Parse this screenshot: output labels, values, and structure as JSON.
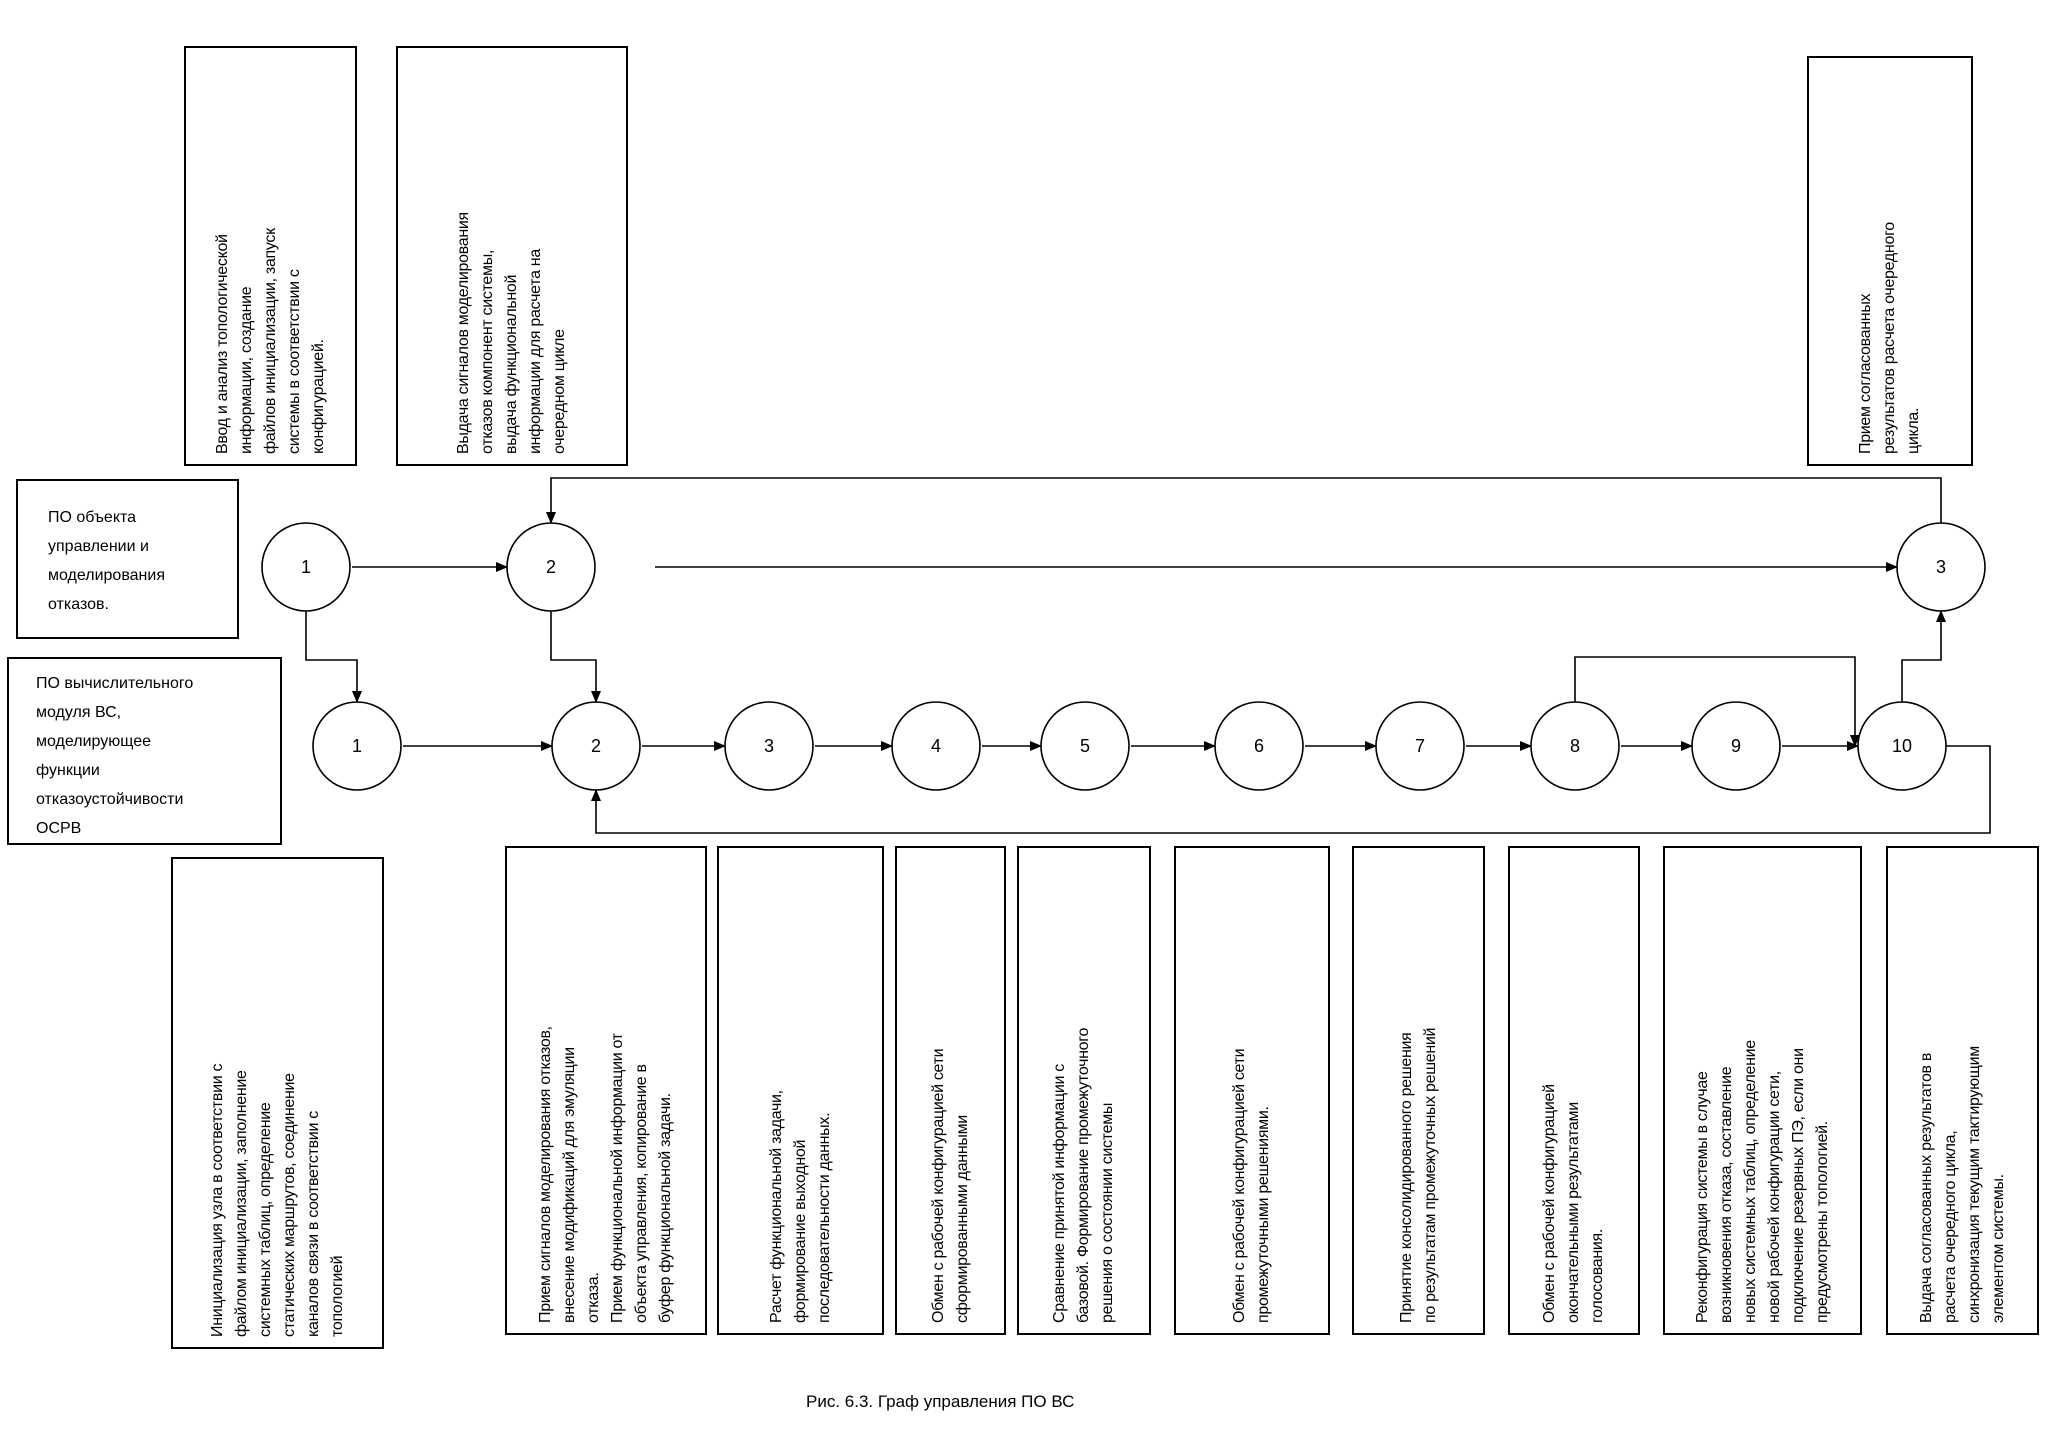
{
  "caption": "Рис. 6.3. Граф управления ПО ВС",
  "left_boxes": [
    {
      "lines": [
        "ПО объекта",
        "управлении и",
        "моделирования",
        "отказов."
      ]
    },
    {
      "lines": [
        "ПО вычислительного",
        "модуля ВС,",
        "моделирующее",
        "функции",
        "отказоустойчивости",
        "ОСРВ"
      ]
    }
  ],
  "top_nodes": [
    "1",
    "2",
    "3"
  ],
  "bottom_nodes": [
    "1",
    "2",
    "3",
    "4",
    "5",
    "6",
    "7",
    "8",
    "9",
    "10"
  ],
  "top_boxes": [
    {
      "lines": [
        "Ввод и анализ топологической",
        "информации, создание",
        "файлов инициализации, запуск",
        "системы в соответствии с",
        "конфигурацией."
      ]
    },
    {
      "lines": [
        "Выдача сигналов моделирования",
        "отказов компонент системы,",
        "выдача функциональной",
        "информации для расчета на",
        "очередном цикле"
      ]
    },
    {
      "lines": [
        "Прием согласованных",
        "результатов расчета очередного",
        "цикла."
      ]
    }
  ],
  "bottom_boxes": [
    {
      "lines": [
        "Инициализация узла в соответствии с",
        "файлом инициализации, заполнение",
        "системных таблиц, определение",
        "статических маршрутов, соединение",
        "каналов связи в соответствии с",
        "топологией"
      ]
    },
    {
      "lines": [
        "Прием сигналов моделирования отказов,",
        "внесение модификаций для эмуляции",
        "отказа.",
        "Прием функциональной информации от",
        "объекта управления, копирование в",
        "буфер функциональной задачи."
      ]
    },
    {
      "lines": [
        "Расчет функциональной задачи,",
        "формирование выходной",
        "последовательности данных."
      ]
    },
    {
      "lines": [
        "Обмен с рабочей конфигурацией сети",
        "сформированными данными"
      ]
    },
    {
      "lines": [
        "Сравнение принятой информации с",
        "базовой. Формирование промежуточного",
        "решения о состоянии системы"
      ]
    },
    {
      "lines": [
        "Обмен с рабочей конфигурацией сети",
        "промежуточными решениями."
      ]
    },
    {
      "lines": [
        "Принятие консолидированного решения",
        "по результатам промежуточных решений"
      ]
    },
    {
      "lines": [
        "Обмен с рабочей конфигурацией",
        "окончательными результатами",
        "голосования."
      ]
    },
    {
      "lines": [
        "Реконфигурация системы в случае",
        "возникновения отказа, составление",
        "новых системных таблиц, определение",
        "новой рабочей конфигурации сети,",
        "подключение резервных ПЭ, если они",
        "предусмотрены топологией."
      ]
    },
    {
      "lines": [
        "Выдача согласованных результатов в",
        "расчета очередного цикла,",
        "синхронизация текущим тактирующим",
        "элементом системы."
      ]
    }
  ]
}
